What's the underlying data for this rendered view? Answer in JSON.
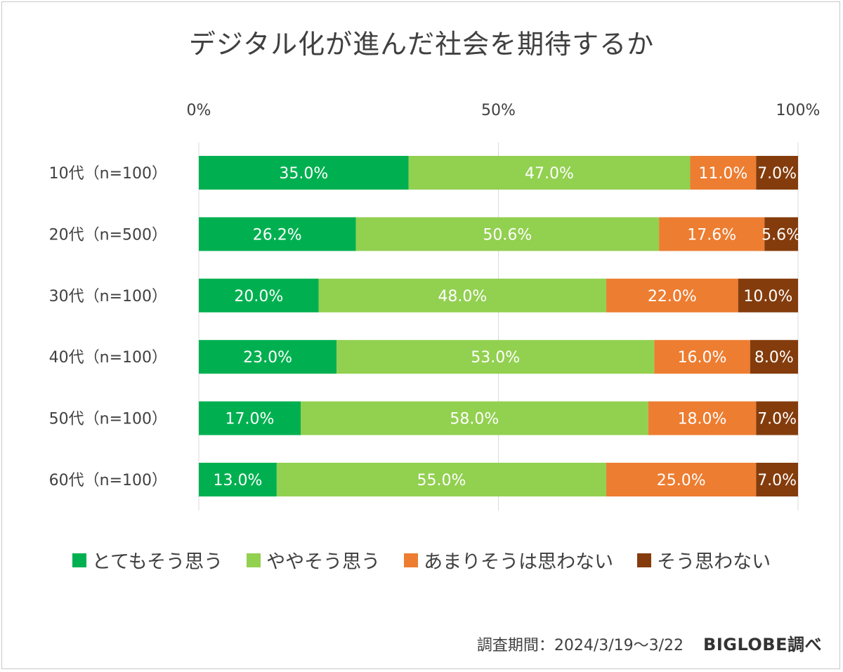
{
  "title": "デジタル化が進んだ社会を期待するか",
  "footer": {
    "period": "調査期間：2024/3/19～3/22",
    "brand": "BIGLOBE調べ"
  },
  "colors": {
    "とてもそう思う": "#00b050",
    "ややそう思う": "#92d050",
    "あまりそうは思わない": "#ed7d31",
    "そう思わない": "#843c0c"
  },
  "chart_data": {
    "type": "bar",
    "orientation": "horizontal",
    "stacked": "percent",
    "xlim": [
      0,
      100
    ],
    "x_ticks": [
      "0%",
      "50%",
      "100%"
    ],
    "x_axis_position": "top",
    "legend_position": "bottom",
    "categories": [
      "10代（n=100）",
      "20代（n=500）",
      "30代（n=100）",
      "40代（n=100）",
      "50代（n=100）",
      "60代（n=100）"
    ],
    "series": [
      {
        "name": "とてもそう思う",
        "values": [
          35.0,
          26.2,
          20.0,
          23.0,
          17.0,
          13.0
        ]
      },
      {
        "name": "ややそう思う",
        "values": [
          47.0,
          50.6,
          48.0,
          53.0,
          58.0,
          55.0
        ]
      },
      {
        "name": "あまりそうは思わない",
        "values": [
          11.0,
          17.6,
          22.0,
          16.0,
          18.0,
          25.0
        ]
      },
      {
        "name": "そう思わない",
        "values": [
          7.0,
          5.6,
          10.0,
          8.0,
          7.0,
          7.0
        ]
      }
    ],
    "data_labels": [
      [
        "35.0%",
        "26.2%",
        "20.0%",
        "23.0%",
        "17.0%",
        "13.0%"
      ],
      [
        "47.0%",
        "50.6%",
        "48.0%",
        "53.0%",
        "58.0%",
        "55.0%"
      ],
      [
        "11.0%",
        "17.6%",
        "22.0%",
        "16.0%",
        "18.0%",
        "25.0%"
      ],
      [
        "7.0%",
        "5.6%",
        "10.0%",
        "8.0%",
        "7.0%",
        "7.0%"
      ]
    ]
  }
}
